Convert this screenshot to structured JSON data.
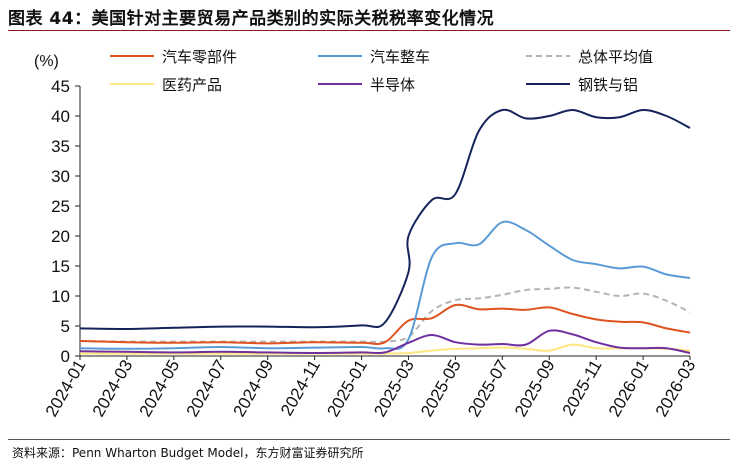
{
  "title": "图表 44：美国针对主要贸易产品类别的实际关税税率变化情况",
  "source": "资料来源：Penn Wharton Budget Model，东方财富证券研究所",
  "chart_data": {
    "type": "line",
    "unit_label": "(%)",
    "ylim": [
      0,
      45
    ],
    "y_ticks": [
      0,
      5,
      10,
      15,
      20,
      25,
      30,
      35,
      40,
      45
    ],
    "x_start": "2024-01",
    "x_end": "2026-03",
    "x_tick_labels": [
      "2024-01",
      "2024-03",
      "2024-05",
      "2024-07",
      "2024-09",
      "2024-11",
      "2025-01",
      "2025-03",
      "2025-05",
      "2025-07",
      "2025-09",
      "2025-11",
      "2026-01",
      "2026-03"
    ],
    "grid": false,
    "legend_position": "top",
    "series": [
      {
        "name": "汽车零部件",
        "color": "#e0521f",
        "dash": false,
        "x": [
          "2024-01",
          "2024-03",
          "2024-05",
          "2024-07",
          "2024-09",
          "2024-11",
          "2025-01",
          "2025-02",
          "2025-03",
          "2025-04",
          "2025-05",
          "2025-06",
          "2025-07",
          "2025-08",
          "2025-09",
          "2025-10",
          "2025-11",
          "2025-12",
          "2026-01",
          "2026-02",
          "2026-03"
        ],
        "y": [
          2.5,
          2.3,
          2.2,
          2.3,
          2.1,
          2.3,
          2.2,
          2.3,
          5.9,
          6.3,
          8.5,
          7.8,
          7.9,
          7.7,
          8.1,
          7.0,
          6.1,
          5.7,
          5.6,
          4.6,
          3.9
        ]
      },
      {
        "name": "汽车整车",
        "color": "#5b9bd5",
        "dash": false,
        "x": [
          "2024-01",
          "2024-03",
          "2024-05",
          "2024-07",
          "2024-09",
          "2024-11",
          "2025-01",
          "2025-02",
          "2025-03",
          "2025-04",
          "2025-05",
          "2025-06",
          "2025-07",
          "2025-08",
          "2025-09",
          "2025-10",
          "2025-11",
          "2025-12",
          "2026-01",
          "2026-02",
          "2026-03"
        ],
        "y": [
          1.3,
          1.2,
          1.3,
          1.5,
          1.3,
          1.4,
          1.5,
          1.3,
          2.8,
          16.5,
          18.8,
          18.6,
          22.3,
          21.0,
          18.4,
          16.0,
          15.3,
          14.6,
          14.9,
          13.6,
          13.0
        ]
      },
      {
        "name": "总体平均值",
        "color": "#b4b4b4",
        "dash": true,
        "x": [
          "2024-01",
          "2024-03",
          "2024-05",
          "2024-07",
          "2024-09",
          "2024-11",
          "2025-01",
          "2025-02",
          "2025-03",
          "2025-04",
          "2025-05",
          "2025-06",
          "2025-07",
          "2025-08",
          "2025-09",
          "2025-10",
          "2025-11",
          "2025-12",
          "2026-01",
          "2026-02",
          "2026-03"
        ],
        "y": [
          2.5,
          2.4,
          2.4,
          2.4,
          2.4,
          2.4,
          2.4,
          2.4,
          3.2,
          7.5,
          9.3,
          9.6,
          10.2,
          11.0,
          11.2,
          11.4,
          10.7,
          10.0,
          10.4,
          9.2,
          7.3
        ]
      },
      {
        "name": "钢铁与铝",
        "color": "#14235a",
        "dash": false,
        "x": [
          "2024-01",
          "2024-03",
          "2024-05",
          "2024-07",
          "2024-09",
          "2024-11",
          "2025-01",
          "2025-02",
          "2025-03",
          "2025-03",
          "2025-04",
          "2025-05",
          "2025-06",
          "2025-07",
          "2025-08",
          "2025-09",
          "2025-10",
          "2025-11",
          "2025-12",
          "2026-01",
          "2026-02",
          "2026-03"
        ],
        "y": [
          4.6,
          4.5,
          4.7,
          4.9,
          4.9,
          4.8,
          5.1,
          5.6,
          14.0,
          20.0,
          26.0,
          27.0,
          37.5,
          41.0,
          39.6,
          40.0,
          41.0,
          39.8,
          39.8,
          41.0,
          40.0,
          38.0
        ]
      },
      {
        "name": "医药产品",
        "color": "#ffe680",
        "dash": false,
        "x": [
          "2024-01",
          "2024-03",
          "2024-05",
          "2024-07",
          "2024-09",
          "2024-11",
          "2025-01",
          "2025-02",
          "2025-03",
          "2025-04",
          "2025-05",
          "2025-06",
          "2025-07",
          "2025-08",
          "2025-09",
          "2025-10",
          "2025-11",
          "2025-12",
          "2026-01",
          "2026-02",
          "2026-03"
        ],
        "y": [
          0.4,
          0.4,
          0.4,
          0.4,
          0.4,
          0.4,
          0.4,
          0.4,
          0.5,
          0.9,
          1.2,
          1.3,
          1.4,
          1.2,
          0.9,
          1.9,
          1.3,
          1.3,
          1.3,
          1.2,
          0.9
        ]
      },
      {
        "name": "半导体",
        "color": "#7030a0",
        "dash": false,
        "x": [
          "2024-01",
          "2024-03",
          "2024-05",
          "2024-07",
          "2024-09",
          "2024-11",
          "2025-01",
          "2025-02",
          "2025-03",
          "2025-04",
          "2025-05",
          "2025-06",
          "2025-07",
          "2025-08",
          "2025-09",
          "2025-10",
          "2025-11",
          "2025-12",
          "2026-01",
          "2026-02",
          "2026-03"
        ],
        "y": [
          0.8,
          0.7,
          0.6,
          0.7,
          0.6,
          0.5,
          0.6,
          0.6,
          2.2,
          3.5,
          2.3,
          1.9,
          2.0,
          1.9,
          4.2,
          3.6,
          2.3,
          1.4,
          1.3,
          1.3,
          0.5
        ]
      }
    ]
  }
}
